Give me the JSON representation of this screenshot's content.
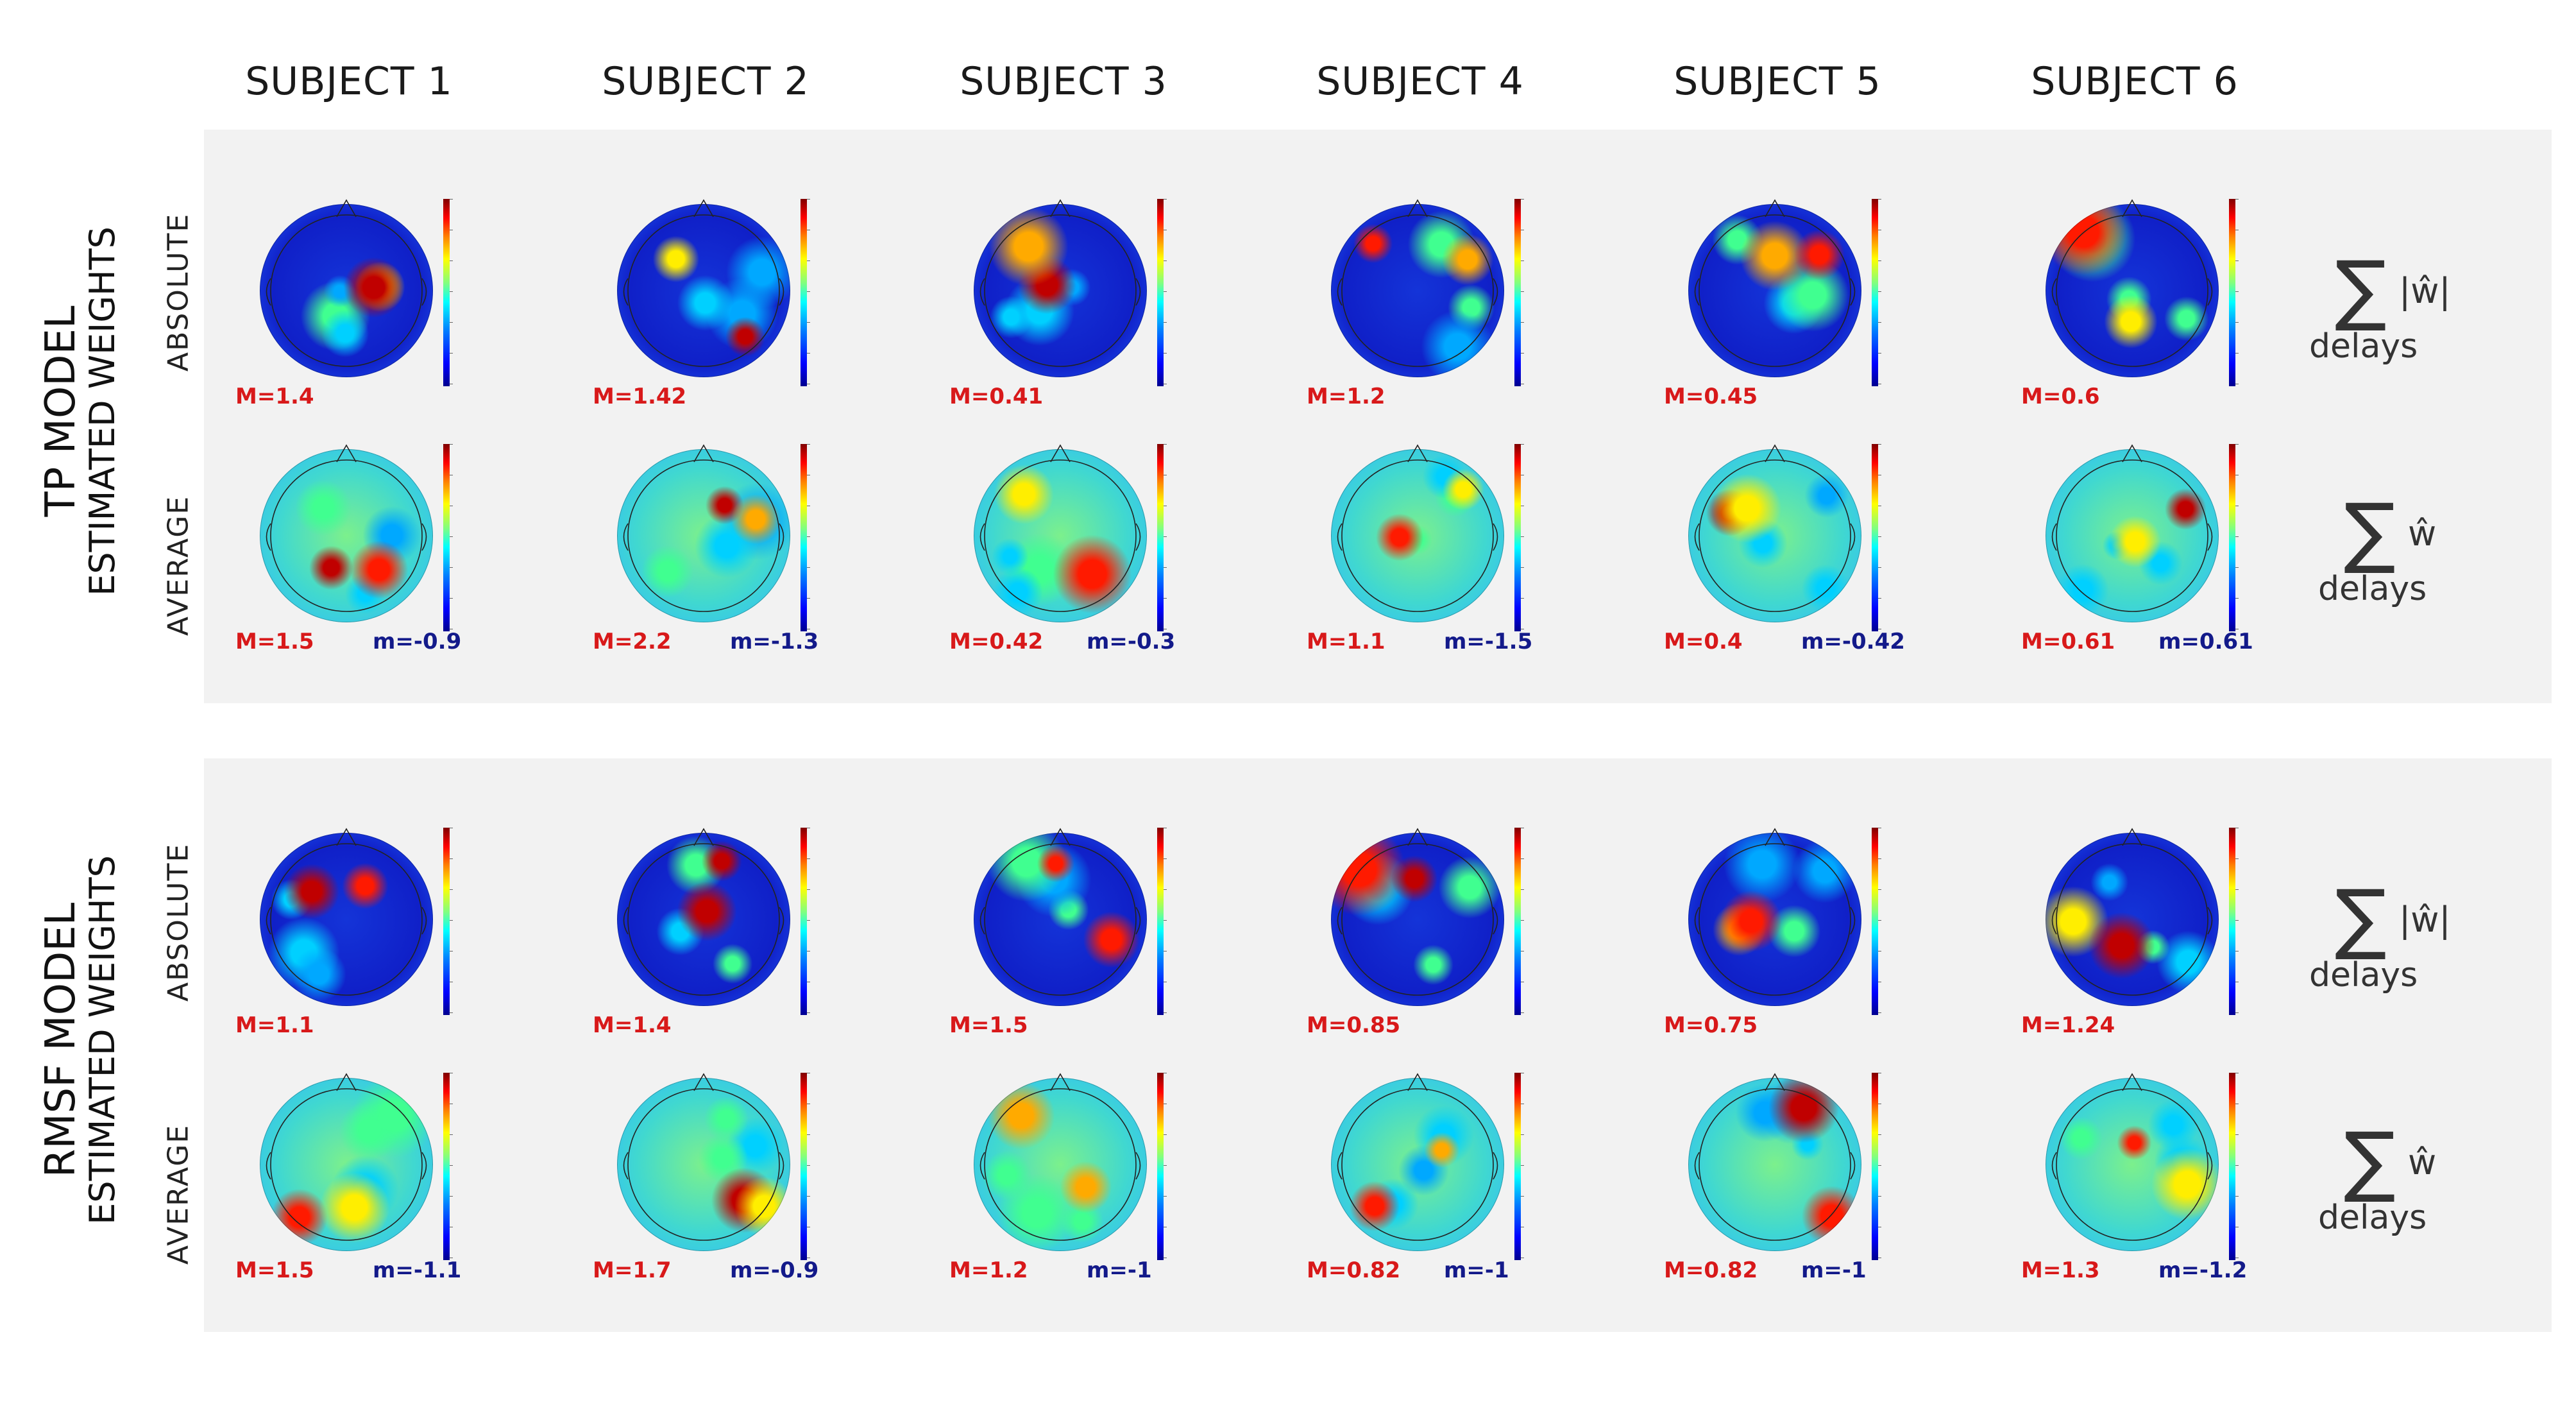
{
  "subjects": [
    "SUBJECT 1",
    "SUBJECT 2",
    "SUBJECT 3",
    "SUBJECT 4",
    "SUBJECT 5",
    "SUBJECT 6"
  ],
  "models": [
    {
      "name": "TP MODEL",
      "subtitle": "ESTIMATED WEIGHTS",
      "rows": [
        {
          "label": "ABSOLUTE",
          "formula": {
            "symbol": "∑",
            "term": "|ŵ|",
            "subscript": "delays"
          },
          "max_values": [
            "M=1.4",
            "M=1.42",
            "M=0.41",
            "M=1.2",
            "M=0.45",
            "M=0.6"
          ],
          "min_values": []
        },
        {
          "label": "AVERAGE",
          "formula": {
            "symbol": "∑",
            "term": "ŵ",
            "subscript": "delays"
          },
          "max_values": [
            "M=1.5",
            "M=2.2",
            "M=0.42",
            "M=1.1",
            "M=0.4",
            "M=0.61"
          ],
          "min_values": [
            "m=-0.9",
            "m=-1.3",
            "m=-0.3",
            "m=-1.5",
            "m=-0.42",
            "m=0.61"
          ]
        }
      ]
    },
    {
      "name": "RMSF MODEL",
      "subtitle": "ESTIMATED WEIGHTS",
      "rows": [
        {
          "label": "ABSOLUTE",
          "formula": {
            "symbol": "∑",
            "term": "|ŵ|",
            "subscript": "delays"
          },
          "max_values": [
            "M=1.1",
            "M=1.4",
            "M=1.5",
            "M=0.85",
            "M=0.75",
            "M=1.24"
          ],
          "min_values": []
        },
        {
          "label": "AVERAGE",
          "formula": {
            "symbol": "∑",
            "term": "ŵ",
            "subscript": "delays"
          },
          "max_values": [
            "M=1.5",
            "M=1.7",
            "M=1.2",
            "M=0.82",
            "M=0.82",
            "M=1.3"
          ],
          "min_values": [
            "m=-1.1",
            "m=-0.9",
            "m=-1",
            "m=-1",
            "m=-1",
            "m=-1.2"
          ]
        }
      ]
    }
  ],
  "colors": {
    "max_text": "#d8191a",
    "min_text": "#131a8a",
    "panel_bg": "#f2f2f2",
    "absolute_map_base": "#1020c8",
    "average_map_base": "#6ee0a0"
  },
  "colormap": "jet"
}
